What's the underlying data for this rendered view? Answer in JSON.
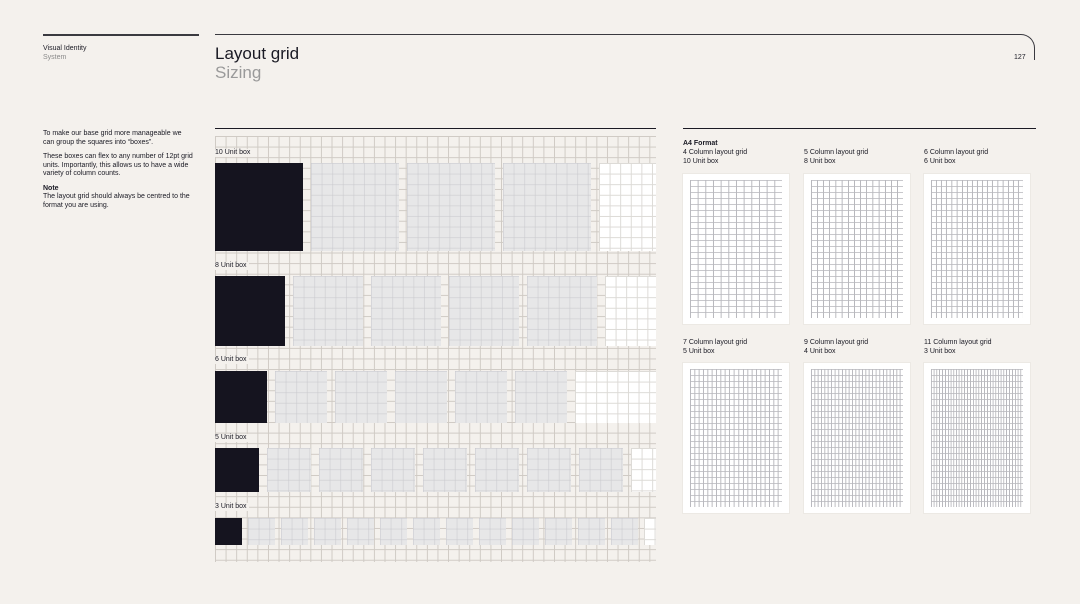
{
  "header": {
    "section_title": "Visual Identity",
    "section_sub": "System",
    "page_title": "Layout grid",
    "page_subtitle": "Sizing",
    "page_number": "127"
  },
  "intro": {
    "para1": "To make our base grid more manageable we can group the squares into “boxes”.",
    "para2": "These boxes can flex to any number of 12pt grid units. Importantly, this allows us to have a wide variety of column counts.",
    "note_heading": "Note",
    "note_body": "The layout grid should always be centred to the format you are using."
  },
  "unit_rows": [
    {
      "label": "10 Unit box",
      "units": 10
    },
    {
      "label": "8 Unit box",
      "units": 8
    },
    {
      "label": "6 Unit box",
      "units": 6
    },
    {
      "label": "5 Unit box",
      "units": 5
    },
    {
      "label": "3 Unit box",
      "units": 3
    }
  ],
  "formats": {
    "heading": "A4 Format",
    "items": [
      {
        "columns_label": "4 Column layout grid",
        "unit_label": "10 Unit box",
        "columns": 4
      },
      {
        "columns_label": "5 Column layout grid",
        "unit_label": "8 Unit box",
        "columns": 5
      },
      {
        "columns_label": "6 Column layout grid",
        "unit_label": "6 Unit box",
        "columns": 6
      },
      {
        "columns_label": "7 Column layout grid",
        "unit_label": "5 Unit box",
        "columns": 7
      },
      {
        "columns_label": "9 Column layout grid",
        "unit_label": "4 Unit box",
        "columns": 9
      },
      {
        "columns_label": "11 Column layout grid",
        "unit_label": "3 Unit box",
        "columns": 11
      }
    ]
  },
  "colors": {
    "page_background": "#f4f1ed",
    "dark_box": "#15141f",
    "light_box": "#e7e7e8"
  }
}
